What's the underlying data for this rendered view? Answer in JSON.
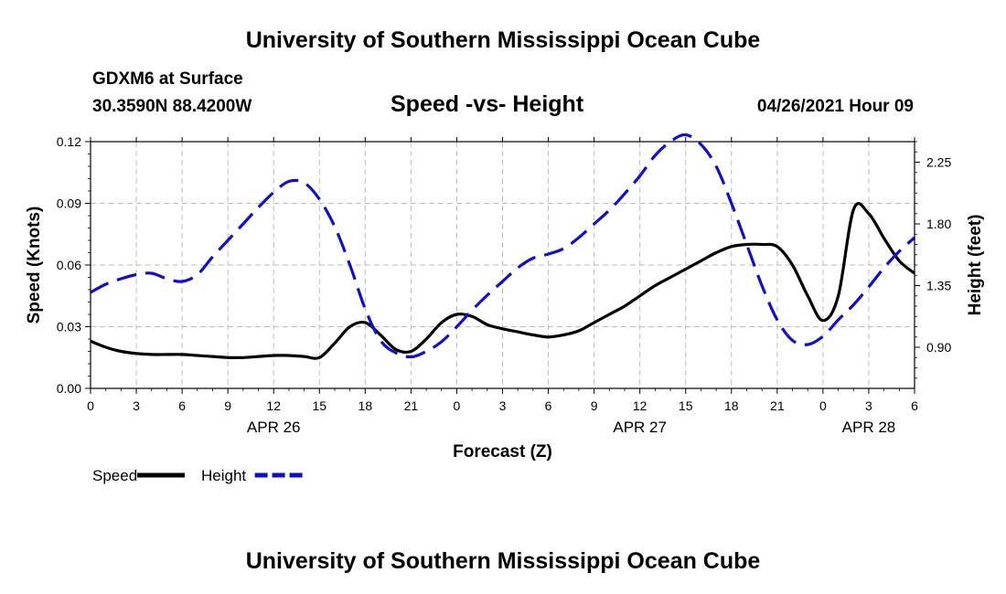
{
  "page": {
    "title_top": "University of Southern Mississippi Ocean Cube",
    "title_bottom": "University of Southern Mississippi Ocean Cube",
    "station": "GDXM6 at Surface",
    "coords": "30.3590N  88.4200W",
    "chart_title": "Speed -vs- Height",
    "datetime": "04/26/2021 Hour 09"
  },
  "chart_data": {
    "type": "line",
    "title": "Speed -vs- Height",
    "xlabel": "Forecast (Z)",
    "ylabel_left": "Speed (Knots)",
    "ylabel_right": "Height (feet)",
    "grid": true,
    "x_range": [
      0,
      54
    ],
    "x_ticks": [
      0,
      3,
      6,
      9,
      12,
      15,
      18,
      21,
      24,
      27,
      30,
      33,
      36,
      39,
      42,
      45,
      48,
      51,
      54
    ],
    "x_tick_labels": [
      "0",
      "3",
      "6",
      "9",
      "12",
      "15",
      "18",
      "21",
      "0",
      "3",
      "6",
      "9",
      "12",
      "15",
      "18",
      "21",
      "0",
      "3",
      "6"
    ],
    "date_labels": [
      {
        "x": 12,
        "label": "APR 26"
      },
      {
        "x": 36,
        "label": "APR 27"
      },
      {
        "x": 51,
        "label": "APR 28"
      }
    ],
    "ylim_left": [
      0,
      0.12
    ],
    "y_ticks_left": [
      0.0,
      0.03,
      0.06,
      0.09,
      0.12
    ],
    "y_tick_labels_left": [
      "0.00",
      "0.03",
      "0.06",
      "0.09",
      "0.12"
    ],
    "ylim_right": [
      0.6,
      2.4
    ],
    "y_ticks_right": [
      0.9,
      1.35,
      1.8,
      2.25
    ],
    "y_tick_labels_right": [
      "0.90",
      "1.35",
      "1.80",
      "2.25"
    ],
    "legend": [
      {
        "name": "Speed",
        "color": "#000000",
        "dash": false
      },
      {
        "name": "Height",
        "color": "#1010c8",
        "dash": true
      }
    ],
    "series": [
      {
        "name": "Speed",
        "axis": "left",
        "color": "#000000",
        "x": [
          0,
          1,
          2,
          3,
          4,
          5,
          6,
          7,
          8,
          9,
          10,
          11,
          12,
          13,
          14,
          15,
          16,
          17,
          18,
          19,
          20,
          21,
          22,
          23,
          24,
          25,
          26,
          27,
          28,
          29,
          30,
          31,
          32,
          33,
          34,
          35,
          36,
          37,
          38,
          39,
          40,
          41,
          42,
          43,
          44,
          45,
          46,
          47,
          48,
          49,
          50,
          51,
          52,
          53,
          54
        ],
        "values": [
          0.023,
          0.02,
          0.018,
          0.017,
          0.0165,
          0.0165,
          0.0165,
          0.016,
          0.0155,
          0.015,
          0.015,
          0.0155,
          0.016,
          0.016,
          0.0155,
          0.015,
          0.022,
          0.03,
          0.032,
          0.026,
          0.019,
          0.018,
          0.024,
          0.032,
          0.036,
          0.035,
          0.031,
          0.029,
          0.0275,
          0.026,
          0.025,
          0.026,
          0.028,
          0.032,
          0.036,
          0.04,
          0.045,
          0.05,
          0.054,
          0.058,
          0.062,
          0.066,
          0.069,
          0.07,
          0.07,
          0.069,
          0.06,
          0.045,
          0.033,
          0.045,
          0.087,
          0.085,
          0.073,
          0.062,
          0.056
        ]
      },
      {
        "name": "Height",
        "axis": "right",
        "color": "#1010c8",
        "x": [
          0,
          1,
          2,
          3,
          4,
          5,
          6,
          7,
          8,
          9,
          10,
          11,
          12,
          13,
          14,
          15,
          16,
          17,
          18,
          19,
          20,
          21,
          22,
          23,
          24,
          25,
          26,
          27,
          28,
          29,
          30,
          31,
          32,
          33,
          34,
          35,
          36,
          37,
          38,
          39,
          40,
          41,
          42,
          43,
          44,
          45,
          46,
          47,
          48,
          49,
          50,
          51,
          52,
          53,
          54
        ],
        "values": [
          1.3,
          1.36,
          1.4,
          1.43,
          1.44,
          1.4,
          1.38,
          1.43,
          1.56,
          1.68,
          1.8,
          1.92,
          2.03,
          2.11,
          2.1,
          1.98,
          1.78,
          1.5,
          1.18,
          0.95,
          0.86,
          0.83,
          0.87,
          0.94,
          1.05,
          1.17,
          1.28,
          1.38,
          1.48,
          1.55,
          1.58,
          1.62,
          1.7,
          1.8,
          1.9,
          2.02,
          2.15,
          2.3,
          2.4,
          2.45,
          2.38,
          2.22,
          1.95,
          1.65,
          1.35,
          1.1,
          0.95,
          0.92,
          0.98,
          1.1,
          1.21,
          1.34,
          1.48,
          1.6,
          1.7
        ]
      }
    ]
  }
}
